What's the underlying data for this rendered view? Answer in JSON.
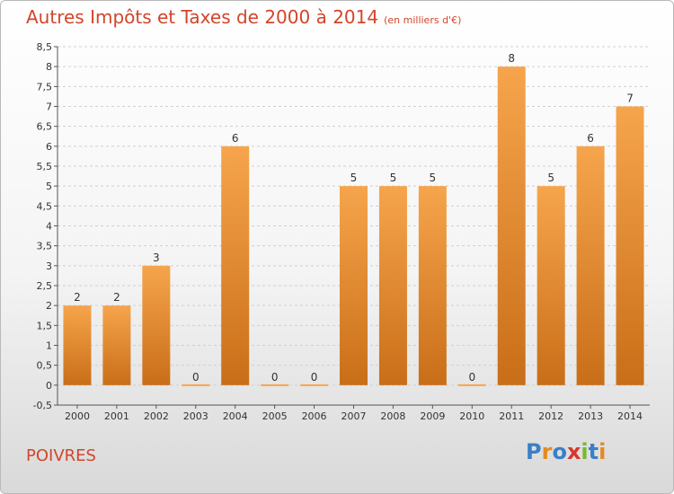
{
  "header": {
    "title": "Autres Impôts et Taxes de 2000 à 2014",
    "subtitle": "(en milliers d'€)"
  },
  "footer": {
    "place": "POIVRES",
    "logo_letters": [
      {
        "ch": "P",
        "color": "#3a7fc8"
      },
      {
        "ch": "r",
        "color": "#e58a1f"
      },
      {
        "ch": "o",
        "color": "#3a7fc8"
      },
      {
        "ch": "x",
        "color": "#d9342b"
      },
      {
        "ch": "i",
        "color": "#7ab631"
      },
      {
        "ch": "t",
        "color": "#3a7fc8"
      },
      {
        "ch": "i",
        "color": "#e58a1f"
      }
    ]
  },
  "colors": {
    "title": "#d2452a",
    "bar_top": "#f6a54c",
    "bar_bottom": "#c96e18",
    "grid": "#d0d0d0"
  },
  "chart_data": {
    "type": "bar",
    "title": "Autres Impôts et Taxes de 2000 à 2014",
    "subtitle": "(en milliers d'€)",
    "xlabel": "",
    "ylabel": "",
    "categories": [
      "2000",
      "2001",
      "2002",
      "2003",
      "2004",
      "2005",
      "2006",
      "2007",
      "2008",
      "2009",
      "2010",
      "2011",
      "2012",
      "2013",
      "2014"
    ],
    "values": [
      2,
      2,
      3,
      0,
      6,
      0,
      0,
      5,
      5,
      5,
      0,
      8,
      5,
      6,
      7
    ],
    "data_labels": [
      "2",
      "2",
      "3",
      "0",
      "6",
      "0",
      "0",
      "5",
      "5",
      "5",
      "0",
      "8",
      "5",
      "6",
      "7"
    ],
    "ylim": [
      -0.5,
      8.5
    ],
    "yticks": [
      "-0,5",
      "0",
      "0,5",
      "1",
      "1,5",
      "2",
      "2,5",
      "3",
      "3,5",
      "4",
      "4,5",
      "5",
      "5,5",
      "6",
      "6,5",
      "7",
      "7,5",
      "8",
      "8,5"
    ],
    "ytick_values": [
      -0.5,
      0,
      0.5,
      1,
      1.5,
      2,
      2.5,
      3,
      3.5,
      4,
      4.5,
      5,
      5.5,
      6,
      6.5,
      7,
      7.5,
      8,
      8.5
    ],
    "grid": true,
    "legend": "none"
  }
}
